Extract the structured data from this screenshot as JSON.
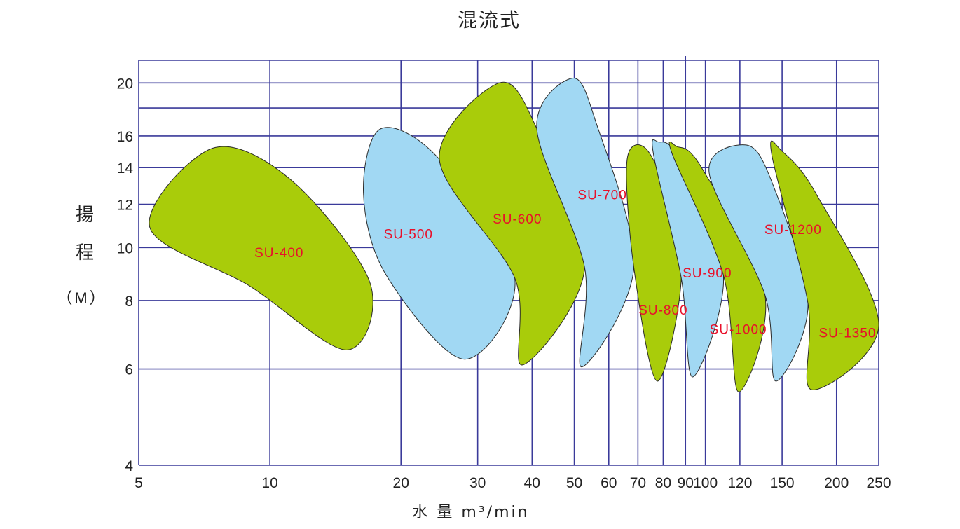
{
  "chart_data": {
    "type": "area",
    "title": "混流式",
    "ylabel": "揚程",
    "yunit": "（M）",
    "xlabel": "水 量 m³/min",
    "x_scale": "log",
    "y_scale": "log",
    "xlim": [
      5,
      250
    ],
    "ylim": [
      4,
      22
    ],
    "x_ticks": [
      5,
      10,
      20,
      30,
      40,
      50,
      60,
      70,
      80,
      90,
      100,
      120,
      150,
      200,
      250
    ],
    "y_ticks": [
      4,
      6,
      8,
      10,
      12,
      14,
      16,
      20
    ],
    "x_grid": [
      10,
      20,
      30,
      40,
      50,
      60,
      70,
      80,
      90,
      100,
      120,
      150,
      200,
      250
    ],
    "y_grid": [
      6,
      8,
      10,
      12,
      14,
      16,
      18,
      20,
      22
    ],
    "grid": true,
    "colors": {
      "green": "#a9cc0a",
      "blue": "#a1d8f3",
      "grid": "#3a3a9a",
      "label": "#e8102a"
    },
    "regions": [
      {
        "label": "SU-400",
        "color": "green",
        "label_at": [
          10.5,
          9.8
        ],
        "points": [
          [
            5.3,
            10.9
          ],
          [
            7.4,
            15.2
          ],
          [
            11.3,
            13.2
          ],
          [
            17.0,
            8.6
          ],
          [
            15.0,
            6.5
          ],
          [
            9.0,
            8.5
          ]
        ]
      },
      {
        "label": "SU-500",
        "color": "blue",
        "label_at": [
          20.8,
          10.6
        ],
        "points": [
          [
            16.4,
            12.6
          ],
          [
            18.0,
            16.5
          ],
          [
            24.5,
            14.5
          ],
          [
            36.5,
            8.8
          ],
          [
            28.0,
            6.25
          ],
          [
            18.5,
            8.9
          ]
        ]
      },
      {
        "label": "SU-600",
        "color": "green",
        "label_at": [
          37.0,
          11.3
        ],
        "points": [
          [
            24.5,
            14.5
          ],
          [
            33.6,
            20.0
          ],
          [
            41.0,
            16.5
          ],
          [
            52.8,
            9.2
          ],
          [
            38.0,
            6.1
          ],
          [
            36.5,
            8.8
          ]
        ]
      },
      {
        "label": "SU-700",
        "color": "blue",
        "label_at": [
          58.0,
          12.5
        ],
        "points": [
          [
            41.0,
            16.5
          ],
          [
            49.5,
            20.4
          ],
          [
            56.0,
            17.0
          ],
          [
            68.5,
            9.2
          ],
          [
            52.0,
            6.05
          ],
          [
            52.8,
            9.2
          ]
        ]
      },
      {
        "label": "SU-800",
        "color": "green",
        "label_at": [
          80.0,
          7.7
        ],
        "points": [
          [
            66.0,
            14.3
          ],
          [
            72.0,
            15.3
          ],
          [
            80.0,
            13.0
          ],
          [
            88.0,
            8.8
          ],
          [
            77.5,
            5.7
          ],
          [
            68.5,
            9.2
          ]
        ]
      },
      {
        "label": "SU-900",
        "color": "blue",
        "label_at": [
          101.0,
          9.0
        ],
        "points": [
          [
            76.0,
            14.8
          ],
          [
            78.0,
            15.6
          ],
          [
            87.0,
            14.5
          ],
          [
            110.0,
            8.9
          ],
          [
            93.5,
            5.8
          ],
          [
            88.0,
            8.8
          ]
        ]
      },
      {
        "label": "SU-1000",
        "color": "green",
        "label_at": [
          119.0,
          7.1
        ],
        "points": [
          [
            84.0,
            14.8
          ],
          [
            86.0,
            15.3
          ],
          [
            98.0,
            14.0
          ],
          [
            137.0,
            8.2
          ],
          [
            119.0,
            5.45
          ],
          [
            110.0,
            8.9
          ]
        ]
      },
      {
        "label": "SU-1200",
        "color": "blue",
        "label_at": [
          159.0,
          10.8
        ],
        "points": [
          [
            102.0,
            13.7
          ],
          [
            124.0,
            15.4
          ],
          [
            142.0,
            13.2
          ],
          [
            172.0,
            7.9
          ],
          [
            145.0,
            5.7
          ],
          [
            137.0,
            8.2
          ]
        ]
      },
      {
        "label": "SU-1350",
        "color": "green",
        "label_at": [
          212.0,
          7.0
        ],
        "points": [
          [
            142.0,
            14.8
          ],
          [
            150.0,
            15.0
          ],
          [
            180.0,
            12.5
          ],
          [
            250.0,
            7.2
          ],
          [
            175.0,
            5.5
          ],
          [
            172.0,
            7.9
          ]
        ]
      }
    ]
  }
}
